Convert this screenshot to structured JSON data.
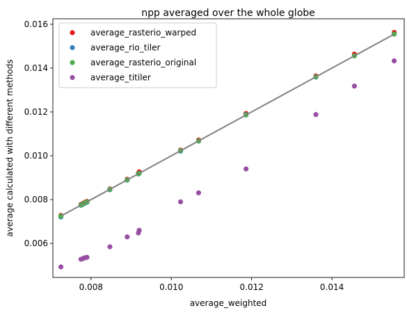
{
  "chart_data": {
    "type": "scatter",
    "title": "npp averaged over the whole globe",
    "xlabel": "average_weighted",
    "ylabel": "average calculated with different methods",
    "xlim": [
      0.00705,
      0.0158
    ],
    "ylim": [
      0.00445,
      0.01625
    ],
    "xticks": [
      0.008,
      0.01,
      0.012,
      0.014
    ],
    "xtick_labels": [
      "0.008",
      "0.010",
      "0.012",
      "0.014"
    ],
    "yticks": [
      0.006,
      0.008,
      0.01,
      0.012,
      0.014,
      0.016
    ],
    "ytick_labels": [
      "0.006",
      "0.008",
      "0.010",
      "0.012",
      "0.014",
      "0.016"
    ],
    "grid": false,
    "legend_position": "top-left",
    "identity_line": {
      "color": "#808080",
      "x": [
        0.00725,
        0.01555
      ],
      "y": [
        0.00725,
        0.01555
      ]
    },
    "x": [
      0.00725,
      0.00775,
      0.0078,
      0.00785,
      0.0079,
      0.00847,
      0.0089,
      0.00918,
      0.0092,
      0.01023,
      0.01068,
      0.01186,
      0.0136,
      0.01456,
      0.01555
    ],
    "series": [
      {
        "name": "average_rasterio_warped",
        "color": "#e41a1c",
        "y": [
          0.00728,
          0.00778,
          0.00783,
          0.00788,
          0.00792,
          0.00849,
          0.00893,
          0.00921,
          0.00927,
          0.01026,
          0.01072,
          0.01193,
          0.01364,
          0.01464,
          0.01563
        ]
      },
      {
        "name": "average_rio_tiler",
        "color": "#377eb8",
        "y": [
          0.00721,
          0.00774,
          0.00779,
          0.00784,
          0.00788,
          0.00845,
          0.00889,
          0.00917,
          0.0092,
          0.01021,
          0.01067,
          0.01188,
          0.01359,
          0.01456,
          0.01555
        ]
      },
      {
        "name": "average_rasterio_original",
        "color": "#4daf4a",
        "y": [
          0.00725,
          0.00775,
          0.0078,
          0.00785,
          0.0079,
          0.00847,
          0.0089,
          0.00918,
          0.0092,
          0.01023,
          0.01068,
          0.01186,
          0.0136,
          0.01456,
          0.01555
        ]
      },
      {
        "name": "average_titiler",
        "color": "#984ea3",
        "y": [
          0.00493,
          0.00528,
          0.00531,
          0.00535,
          0.00537,
          0.00585,
          0.0063,
          0.00648,
          0.0066,
          0.0079,
          0.00831,
          0.0094,
          0.01188,
          0.01318,
          0.01433
        ]
      }
    ]
  }
}
